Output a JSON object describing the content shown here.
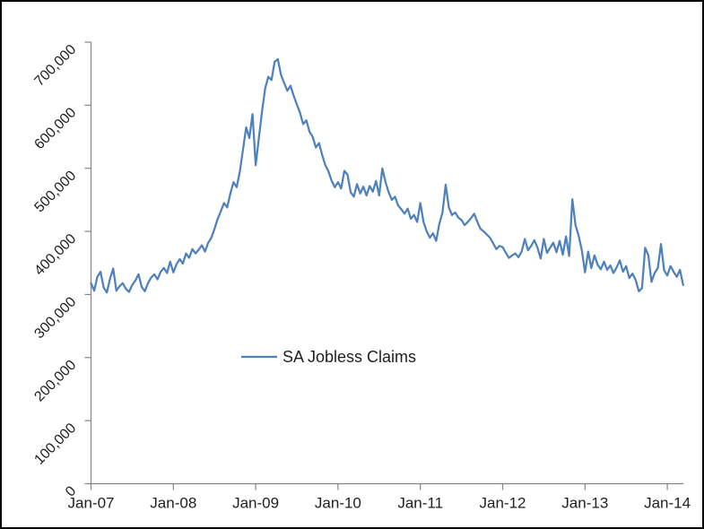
{
  "colors": {
    "series": "#4F81BD",
    "axis": "#848484",
    "text": "#1f1f1f",
    "background": "#ffffff",
    "frame": "#000000"
  },
  "chart_data": {
    "type": "line",
    "title": "",
    "xlabel": "",
    "ylabel": "",
    "grid": false,
    "legend_position": "inside-center-bottom",
    "ylim": [
      0,
      700000
    ],
    "y_tick_labels": [
      "0",
      "100,000",
      "200,000",
      "300,000",
      "400,000",
      "500,000",
      "600,000",
      "700,000"
    ],
    "x_tick_labels": [
      "Jan-07",
      "Jan-08",
      "Jan-09",
      "Jan-10",
      "Jan-11",
      "Jan-12",
      "Jan-13",
      "Jan-14"
    ],
    "x_start": "Jan-07",
    "x_end": "Mar-14",
    "sample_interval": "bi-weekly",
    "series": [
      {
        "name": "SA Jobless Claims",
        "color": "#4F81BD",
        "values": [
          318000,
          306000,
          328000,
          336000,
          311000,
          303000,
          325000,
          341000,
          306000,
          313000,
          318000,
          309000,
          304000,
          315000,
          322000,
          332000,
          312000,
          305000,
          318000,
          327000,
          332000,
          324000,
          336000,
          342000,
          334000,
          352000,
          335000,
          348000,
          356000,
          349000,
          365000,
          358000,
          372000,
          365000,
          371000,
          378000,
          368000,
          382000,
          390000,
          404000,
          420000,
          432000,
          445000,
          438000,
          460000,
          478000,
          470000,
          495000,
          530000,
          565000,
          548000,
          586000,
          505000,
          548000,
          590000,
          627000,
          645000,
          640000,
          669000,
          673000,
          648000,
          635000,
          623000,
          631000,
          615000,
          601000,
          588000,
          570000,
          576000,
          558000,
          550000,
          533000,
          540000,
          521000,
          505000,
          495000,
          480000,
          470000,
          478000,
          468000,
          496000,
          490000,
          462000,
          455000,
          475000,
          460000,
          471000,
          457000,
          472000,
          463000,
          480000,
          457000,
          500000,
          478000,
          462000,
          450000,
          455000,
          441000,
          435000,
          428000,
          436000,
          420000,
          426000,
          415000,
          445000,
          415000,
          400000,
          390000,
          397000,
          385000,
          412000,
          430000,
          474000,
          438000,
          426000,
          430000,
          422000,
          418000,
          410000,
          415000,
          421000,
          428000,
          415000,
          404000,
          400000,
          395000,
          390000,
          381000,
          372000,
          377000,
          375000,
          366000,
          358000,
          362000,
          365000,
          359000,
          368000,
          388000,
          370000,
          377000,
          386000,
          374000,
          357000,
          388000,
          366000,
          374000,
          382000,
          367000,
          385000,
          363000,
          392000,
          361000,
          451000,
          410000,
          393000,
          370000,
          335000,
          368000,
          342000,
          362000,
          347000,
          340000,
          352000,
          339000,
          346000,
          334000,
          343000,
          354000,
          336000,
          345000,
          326000,
          333000,
          323000,
          305000,
          310000,
          374000,
          362000,
          320000,
          334000,
          342000,
          380000,
          338000,
          330000,
          345000,
          336000,
          328000,
          339000,
          315000
        ]
      }
    ]
  }
}
